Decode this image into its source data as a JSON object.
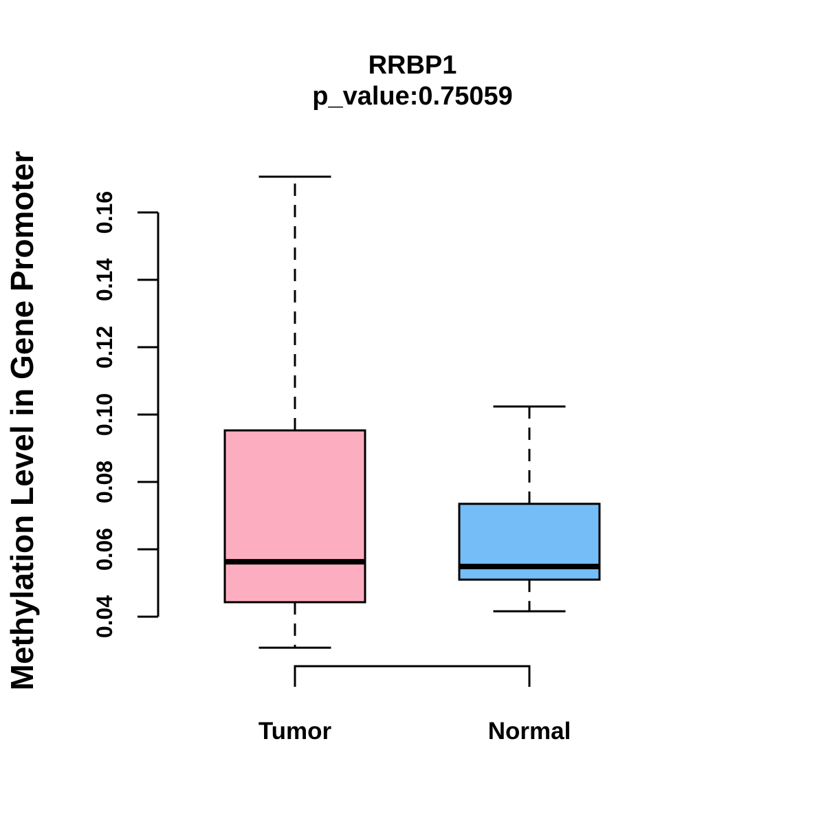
{
  "chart_data": {
    "type": "boxplot",
    "title": "RRBP1",
    "subtitle": "p_value:0.75059",
    "gene": "RRBP1",
    "p_value": 0.75059,
    "ylabel": "Methylation Level in Gene Promoter",
    "xlabel": "",
    "ylim": [
      0.04,
      0.16
    ],
    "yticks": [
      0.04,
      0.06,
      0.08,
      0.1,
      0.12,
      0.14,
      0.16
    ],
    "ytick_decimals": 2,
    "grid": false,
    "background_color": "#FFFFFF",
    "line_color": "#000000",
    "groups": [
      {
        "label": "Tumor",
        "fill_color": "#FCAEC0",
        "stats": {
          "whisker_low": 0.0308,
          "q1": 0.0443,
          "median": 0.0563,
          "q3": 0.0953,
          "whisker_high": 0.1706
        }
      },
      {
        "label": "Normal",
        "fill_color": "#74BDF7",
        "stats": {
          "whisker_low": 0.0416,
          "q1": 0.051,
          "median": 0.0549,
          "q3": 0.0735,
          "whisker_high": 0.1024
        }
      }
    ],
    "comparison_bracket": {
      "between": [
        "Tumor",
        "Normal"
      ]
    }
  }
}
